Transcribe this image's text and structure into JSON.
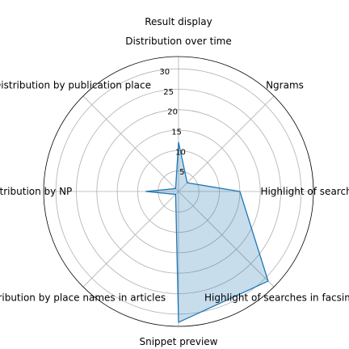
{
  "chart_data": {
    "type": "radar",
    "title": "Result display",
    "categories": [
      "Distribution over time",
      "Ngrams",
      "Highlight of searches in text",
      "Highlight of searches in facsimile",
      "Snippet preview",
      "Distribution by place names in articles",
      "Distribution by NP",
      "Distribution by publication place"
    ],
    "series": [
      {
        "values": [
          12,
          3,
          15,
          31,
          32,
          1,
          8,
          1
        ]
      }
    ],
    "rlim": [
      0,
      33
    ],
    "rticks": [
      5,
      10,
      15,
      20,
      25,
      30
    ],
    "rtick_labels": [
      "5",
      "10",
      "15",
      "20",
      "25",
      "30"
    ],
    "grid": true,
    "colors": {
      "line": "#1f77b4",
      "fill": "#1f77b4",
      "grid": "#b0b0b0",
      "outline": "#000000"
    }
  }
}
